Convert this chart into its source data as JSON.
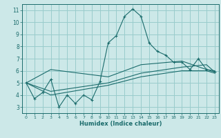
{
  "xlabel": "Humidex (Indice chaleur)",
  "bg_color": "#cce8e8",
  "grid_color": "#99cccc",
  "line_color": "#1a6b6b",
  "xlim": [
    -0.5,
    23.5
  ],
  "ylim": [
    2.5,
    11.5
  ],
  "xticks": [
    0,
    1,
    2,
    3,
    4,
    5,
    6,
    7,
    8,
    9,
    10,
    11,
    12,
    13,
    14,
    15,
    16,
    17,
    18,
    19,
    20,
    21,
    22,
    23
  ],
  "yticks": [
    3,
    4,
    5,
    6,
    7,
    8,
    9,
    10,
    11
  ],
  "line1_x": [
    0,
    1,
    2,
    3,
    4,
    5,
    6,
    7,
    8,
    9,
    10,
    11,
    12,
    13,
    14,
    15,
    16,
    17,
    18,
    19,
    20,
    21,
    22,
    23
  ],
  "line1_y": [
    5.0,
    3.7,
    4.2,
    5.3,
    3.0,
    4.0,
    3.3,
    4.0,
    3.6,
    5.1,
    8.3,
    8.9,
    10.5,
    11.1,
    10.5,
    8.3,
    7.6,
    7.3,
    6.7,
    6.7,
    6.1,
    7.0,
    6.1,
    5.9
  ],
  "line2_x": [
    0,
    3,
    10,
    14,
    19,
    22,
    23
  ],
  "line2_y": [
    5.0,
    6.1,
    5.5,
    6.5,
    6.8,
    6.1,
    6.0
  ],
  "line3_x": [
    0,
    3,
    10,
    14,
    19,
    22,
    23
  ],
  "line3_y": [
    5.0,
    4.3,
    5.0,
    5.8,
    6.3,
    6.5,
    5.9
  ],
  "line4_x": [
    0,
    3,
    10,
    14,
    19,
    22,
    23
  ],
  "line4_y": [
    5.0,
    4.0,
    4.8,
    5.5,
    6.0,
    6.0,
    5.8
  ]
}
